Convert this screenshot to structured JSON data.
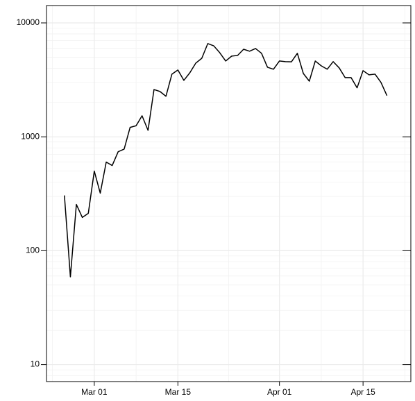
{
  "chart_data": {
    "type": "line",
    "log_y": true,
    "grid": true,
    "color": "#000000",
    "x": [
      "Feb 25",
      "Feb 26",
      "Feb 27",
      "Feb 28",
      "Feb 29",
      "Mar 01",
      "Mar 02",
      "Mar 03",
      "Mar 04",
      "Mar 05",
      "Mar 06",
      "Mar 07",
      "Mar 08",
      "Mar 09",
      "Mar 10",
      "Mar 11",
      "Mar 12",
      "Mar 13",
      "Mar 14",
      "Mar 15",
      "Mar 16",
      "Mar 17",
      "Mar 18",
      "Mar 19",
      "Mar 20",
      "Mar 21",
      "Mar 22",
      "Mar 23",
      "Mar 24",
      "Mar 25",
      "Mar 26",
      "Mar 27",
      "Mar 28",
      "Mar 29",
      "Mar 30",
      "Mar 31",
      "Apr 01",
      "Apr 02",
      "Apr 03",
      "Apr 04",
      "Apr 05",
      "Apr 06",
      "Apr 07",
      "Apr 08",
      "Apr 09",
      "Apr 10",
      "Apr 11",
      "Apr 12",
      "Apr 13",
      "Apr 14",
      "Apr 15",
      "Apr 16",
      "Apr 17",
      "Apr 18",
      "Apr 19"
    ],
    "values": [
      306,
      59,
      255,
      196,
      213,
      500,
      320,
      600,
      560,
      740,
      780,
      1210,
      1250,
      1530,
      1140,
      2600,
      2500,
      2270,
      3550,
      3860,
      3130,
      3650,
      4440,
      4890,
      6580,
      6290,
      5480,
      4630,
      5110,
      5180,
      5870,
      5640,
      5960,
      5410,
      4080,
      3920,
      4630,
      4570,
      4550,
      5410,
      3600,
      3080,
      4630,
      4200,
      3920,
      4570,
      4030,
      3310,
      3310,
      2690,
      3810,
      3500,
      3550,
      3000,
      2300
    ],
    "xlim": [
      "Feb 22",
      "Apr 23"
    ],
    "xticks": [
      "Mar 01",
      "Mar 15",
      "Apr 01",
      "Apr 15"
    ],
    "ylim": [
      7.1,
      14200
    ],
    "yticks": [
      10,
      100,
      1000,
      10000
    ]
  }
}
